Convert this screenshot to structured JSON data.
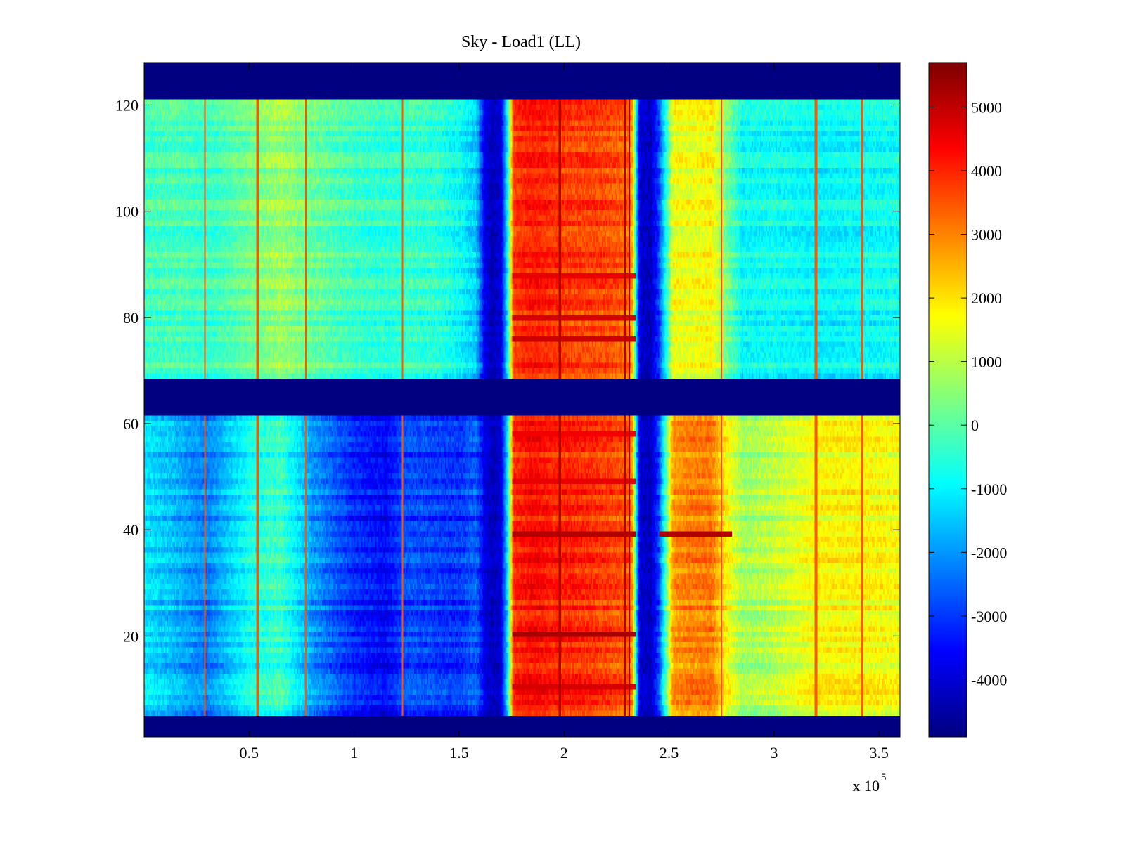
{
  "chart_data": {
    "type": "heatmap",
    "title": "Sky - Load1 (LL)",
    "xlabel": "",
    "ylabel": "",
    "x_exponent_label": "x 10",
    "x_exponent_power": "5",
    "xlim": [
      0,
      3.6
    ],
    "ylim": [
      1,
      128
    ],
    "x_ticks": [
      0.5,
      1,
      1.5,
      2,
      2.5,
      3,
      3.5
    ],
    "x_tick_labels": [
      "0.5",
      "1",
      "1.5",
      "2",
      "2.5",
      "3",
      "3.5"
    ],
    "y_ticks": [
      20,
      40,
      60,
      80,
      100,
      120
    ],
    "y_tick_labels": [
      "20",
      "40",
      "60",
      "80",
      "100",
      "120"
    ],
    "colorbar": {
      "colormap": "jet",
      "range": [
        -4900,
        5700
      ],
      "ticks": [
        -4000,
        -3000,
        -2000,
        -1000,
        0,
        1000,
        2000,
        3000,
        4000,
        5000
      ],
      "tick_labels": [
        "-4000",
        "-3000",
        "-2000",
        "-1000",
        "0",
        "1000",
        "2000",
        "3000",
        "4000",
        "5000"
      ]
    },
    "masked_channel_bands": [
      [
        1,
        4
      ],
      [
        62,
        68
      ],
      [
        122,
        128
      ]
    ],
    "column_profile": {
      "x_e5": [
        0.0,
        0.15,
        0.3,
        0.5,
        0.65,
        0.8,
        1.0,
        1.15,
        1.25,
        1.4,
        1.5,
        1.58,
        1.62,
        1.66,
        1.7,
        1.73,
        1.76,
        1.85,
        1.95,
        2.05,
        2.15,
        2.25,
        2.32,
        2.36,
        2.41,
        2.45,
        2.52,
        2.6,
        2.7,
        2.76,
        2.85,
        3.0,
        3.2,
        3.4,
        3.6
      ],
      "upper_band": [
        -300,
        -150,
        -400,
        200,
        700,
        150,
        -300,
        -500,
        -350,
        -500,
        -900,
        -1500,
        -3800,
        -4300,
        -4000,
        -1000,
        3800,
        4100,
        3900,
        3700,
        3700,
        3500,
        3200,
        -4000,
        -4300,
        -3000,
        1600,
        1500,
        1800,
        500,
        -900,
        -800,
        -1000,
        -900,
        -800
      ],
      "lower_band": [
        -1200,
        -1700,
        -2300,
        -800,
        -300,
        -2000,
        -3200,
        -3600,
        -2800,
        -3000,
        -3100,
        -2600,
        -3900,
        -4300,
        -4000,
        -1200,
        3900,
        4300,
        4000,
        4000,
        3800,
        3600,
        3400,
        -4000,
        -4300,
        -3000,
        2800,
        3000,
        3100,
        1900,
        700,
        1000,
        1700,
        1800,
        1600
      ]
    },
    "column_profile_units": "x in units of 10^5; values in colorbar units",
    "vertical_lines_x_e5": [
      0.29,
      0.54,
      0.77,
      1.23,
      1.98,
      2.29,
      2.31,
      2.75,
      3.2,
      3.42
    ],
    "bright_rows": [
      {
        "channel": 39,
        "value": 5200
      },
      {
        "channel": 20,
        "value": 5300
      },
      {
        "channel": 10,
        "value": 4800
      },
      {
        "channel": 49,
        "value": 4600
      },
      {
        "channel": 58,
        "value": 4500
      },
      {
        "channel": 76,
        "value": 4900
      },
      {
        "channel": 80,
        "value": 4800
      },
      {
        "channel": 88,
        "value": 4600
      }
    ]
  }
}
